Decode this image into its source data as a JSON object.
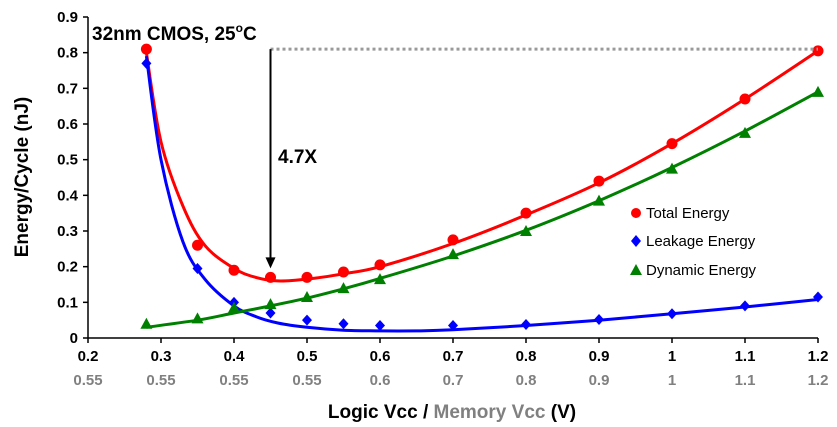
{
  "chart_data": {
    "type": "line",
    "annotation_title": {
      "main": "32nm CMOS, 25",
      "degree": "o",
      "unit": "C"
    },
    "annotation_ratio": "4.7X",
    "ylabel": "Energy/Cycle (nJ)",
    "xlabel": {
      "part1": "Logic Vcc / ",
      "part2": "Memory Vcc",
      "part3": " (V)"
    },
    "xlim": [
      0.2,
      1.2
    ],
    "ylim": [
      0,
      0.9
    ],
    "xticks": [
      "0.2",
      "0.3",
      "0.4",
      "0.5",
      "0.6",
      "0.7",
      "0.8",
      "0.9",
      "1",
      "1.1",
      "1.2"
    ],
    "xticks_memory": [
      "0.55",
      "0.55",
      "0.55",
      "0.55",
      "0.6",
      "0.7",
      "0.8",
      "0.9",
      "1",
      "1.1",
      "1.2"
    ],
    "yticks": [
      "0",
      "0.1",
      "0.2",
      "0.3",
      "0.4",
      "0.5",
      "0.6",
      "0.7",
      "0.8",
      "0.9"
    ],
    "legend_position": "right",
    "colors": {
      "total": "#ff0000",
      "leakage": "#0000ff",
      "dynamic": "#008000",
      "annotation_line": "#9a9a9a"
    },
    "series": [
      {
        "name": "Total Energy",
        "marker": "circle",
        "x": [
          0.28,
          0.35,
          0.4,
          0.45,
          0.5,
          0.55,
          0.6,
          0.7,
          0.8,
          0.9,
          1.0,
          1.1,
          1.2
        ],
        "values": [
          0.81,
          0.26,
          0.19,
          0.17,
          0.17,
          0.185,
          0.205,
          0.275,
          0.35,
          0.44,
          0.545,
          0.67,
          0.805
        ],
        "curve_x": [
          0.28,
          0.3,
          0.33,
          0.36,
          0.4,
          0.43,
          0.46,
          0.5,
          0.55,
          0.6,
          0.7,
          0.8,
          0.9,
          1.0,
          1.1,
          1.2
        ],
        "curve_y": [
          0.8,
          0.55,
          0.37,
          0.26,
          0.195,
          0.17,
          0.16,
          0.165,
          0.18,
          0.2,
          0.265,
          0.345,
          0.435,
          0.545,
          0.67,
          0.805
        ]
      },
      {
        "name": "Leakage Energy",
        "marker": "diamond",
        "x": [
          0.28,
          0.35,
          0.4,
          0.45,
          0.5,
          0.55,
          0.6,
          0.7,
          0.8,
          0.9,
          1.0,
          1.1,
          1.2
        ],
        "values": [
          0.77,
          0.195,
          0.1,
          0.07,
          0.05,
          0.04,
          0.035,
          0.035,
          0.038,
          0.052,
          0.068,
          0.09,
          0.115
        ],
        "curve_x": [
          0.28,
          0.3,
          0.33,
          0.36,
          0.4,
          0.43,
          0.46,
          0.5,
          0.55,
          0.6,
          0.65,
          0.7,
          0.8,
          0.9,
          1.0,
          1.1,
          1.2
        ],
        "curve_y": [
          0.79,
          0.5,
          0.27,
          0.165,
          0.09,
          0.06,
          0.042,
          0.03,
          0.022,
          0.02,
          0.02,
          0.023,
          0.035,
          0.05,
          0.068,
          0.087,
          0.108
        ]
      },
      {
        "name": "Dynamic Energy",
        "marker": "triangle",
        "x": [
          0.28,
          0.35,
          0.4,
          0.45,
          0.5,
          0.55,
          0.6,
          0.7,
          0.8,
          0.9,
          1.0,
          1.1,
          1.2
        ],
        "values": [
          0.04,
          0.055,
          0.085,
          0.095,
          0.115,
          0.14,
          0.165,
          0.235,
          0.3,
          0.385,
          0.475,
          0.575,
          0.69
        ],
        "curve_x": [
          0.28,
          0.35,
          0.4,
          0.45,
          0.5,
          0.55,
          0.6,
          0.7,
          0.8,
          0.9,
          1.0,
          1.1,
          1.2
        ],
        "curve_y": [
          0.03,
          0.05,
          0.07,
          0.09,
          0.112,
          0.138,
          0.167,
          0.23,
          0.302,
          0.385,
          0.478,
          0.58,
          0.69
        ]
      }
    ]
  }
}
